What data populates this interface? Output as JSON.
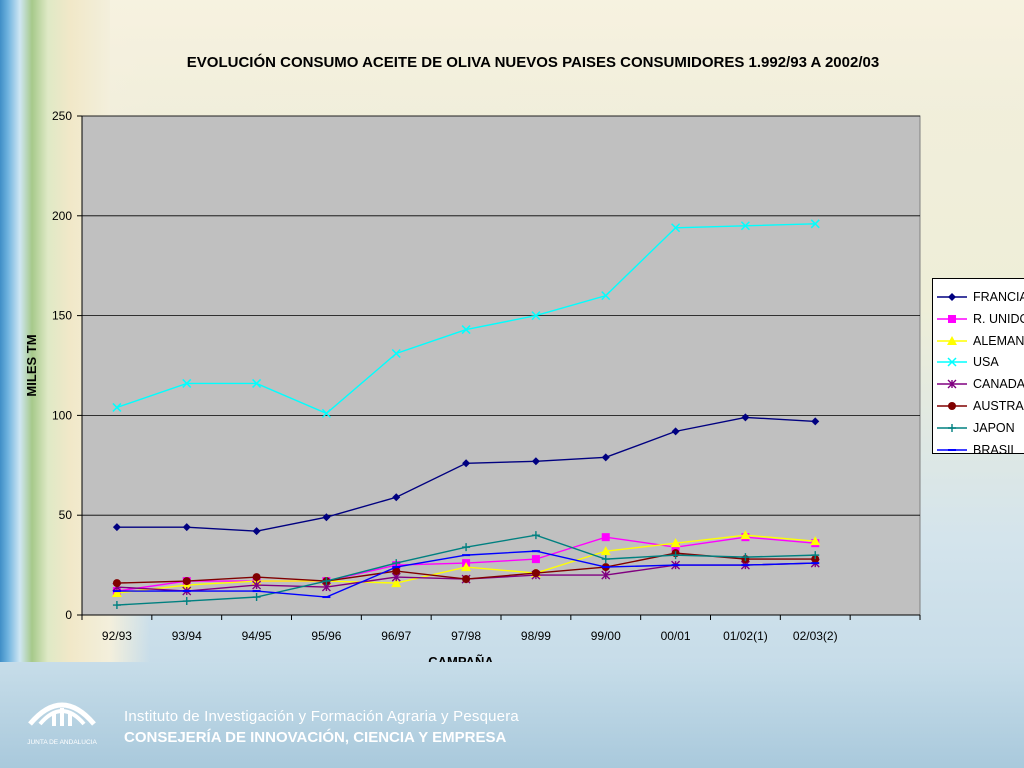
{
  "footer": {
    "logo_text": "JUNTA DE ANDALUCIA",
    "line1": "Instituto de Investigación y Formación Agraria y Pesquera",
    "line2": "CONSEJERÍA DE INNOVACIÓN, CIENCIA Y EMPRESA"
  },
  "chart_data": {
    "type": "line",
    "title": "EVOLUCIÓN CONSUMO ACEITE DE OLIVA NUEVOS PAISES CONSUMIDORES 1.992/93 A 2002/03",
    "xlabel": "CAMPAÑA",
    "ylabel": "MILES TM",
    "ylim": [
      0,
      250
    ],
    "yticks": [
      0,
      50,
      100,
      150,
      200,
      250
    ],
    "grid": true,
    "legend_position": "right",
    "categories": [
      "92/93",
      "93/94",
      "94/95",
      "95/96",
      "96/97",
      "97/98",
      "98/99",
      "99/00",
      "00/01",
      "01/02(1)",
      "02/03(2)"
    ],
    "series": [
      {
        "name": "FRANCIA",
        "marker": "diamond",
        "color": "#000080",
        "values": [
          44,
          44,
          42,
          49,
          59,
          76,
          77,
          79,
          92,
          99,
          97
        ]
      },
      {
        "name": "R. UNIDO",
        "marker": "square",
        "color": "#ff00ff",
        "values": [
          12,
          17,
          17,
          17,
          25,
          26,
          28,
          39,
          34,
          39,
          36
        ]
      },
      {
        "name": "ALEMANIA",
        "marker": "triangle",
        "color": "#ffff00",
        "values": [
          11,
          15,
          17,
          17,
          16,
          24,
          21,
          32,
          36,
          40,
          37
        ]
      },
      {
        "name": "USA",
        "marker": "x",
        "color": "#00ffff",
        "values": [
          104,
          116,
          116,
          101,
          131,
          143,
          150,
          160,
          194,
          195,
          196
        ]
      },
      {
        "name": "CANADA",
        "marker": "star",
        "color": "#800080",
        "values": [
          14,
          12,
          15,
          14,
          19,
          18,
          20,
          20,
          25,
          25,
          26
        ]
      },
      {
        "name": "AUSTRALIA",
        "marker": "circle",
        "color": "#800000",
        "values": [
          16,
          17,
          19,
          17,
          22,
          18,
          21,
          24,
          31,
          28,
          28
        ]
      },
      {
        "name": "JAPON",
        "marker": "plus",
        "color": "#008080",
        "values": [
          5,
          7,
          9,
          17,
          26,
          34,
          40,
          28,
          30,
          29,
          30
        ]
      },
      {
        "name": "BRASIL",
        "marker": "dash",
        "color": "#0000ff",
        "values": [
          12,
          12,
          12,
          9,
          24,
          30,
          32,
          24,
          25,
          25,
          26
        ]
      }
    ]
  }
}
